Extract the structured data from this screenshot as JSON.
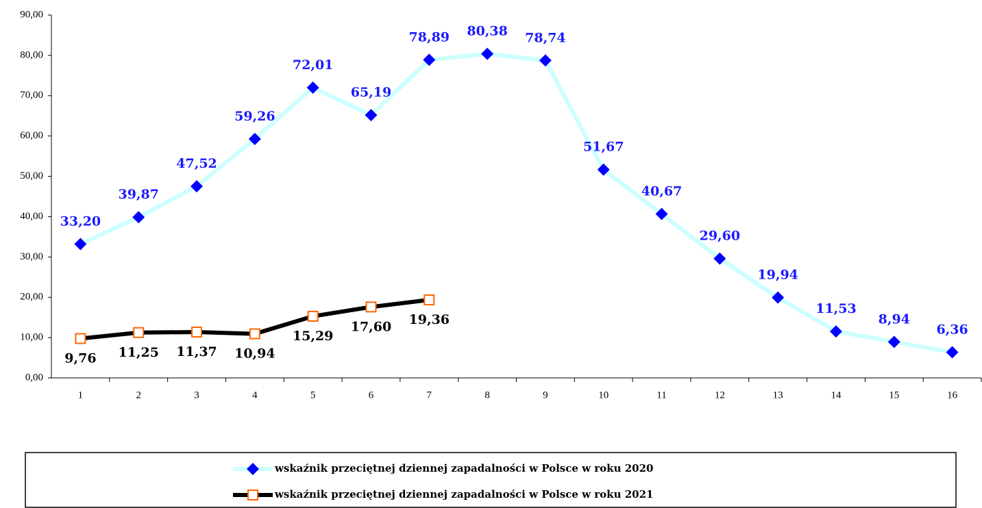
{
  "chart_data": {
    "type": "line",
    "categories": [
      1,
      2,
      3,
      4,
      5,
      6,
      7,
      8,
      9,
      10,
      11,
      12,
      13,
      14,
      15,
      16
    ],
    "ylim": [
      0,
      90
    ],
    "yticks": [
      {
        "value": 0,
        "label": "0,00"
      },
      {
        "value": 10,
        "label": "10,00"
      },
      {
        "value": 20,
        "label": "20,00"
      },
      {
        "value": 30,
        "label": "30,00"
      },
      {
        "value": 40,
        "label": "40,00"
      },
      {
        "value": 50,
        "label": "50,00"
      },
      {
        "value": 60,
        "label": "60,00"
      },
      {
        "value": 70,
        "label": "70,00"
      },
      {
        "value": 80,
        "label": "80,00"
      },
      {
        "value": 90,
        "label": "90,00"
      }
    ],
    "series": [
      {
        "name": "wskaźnik przeciętnej dziennej zapadalności w Polsce w roku 2020",
        "color": "#ccffff",
        "marker": "diamond",
        "marker_color": "#0000ff",
        "label_color": "#1a1aff",
        "label_position": "above",
        "values": [
          33.2,
          39.87,
          47.52,
          59.26,
          72.01,
          65.19,
          78.89,
          80.38,
          78.74,
          51.67,
          40.67,
          29.6,
          19.94,
          11.53,
          8.94,
          6.36
        ],
        "value_labels": [
          "33,20",
          "39,87",
          "47,52",
          "59,26",
          "72,01",
          "65,19",
          "78,89",
          "80,38",
          "78,74",
          "51,67",
          "40,67",
          "29,60",
          "19,94",
          "11,53",
          "8,94",
          "6,36"
        ]
      },
      {
        "name": "wskaźnik przeciętnej dziennej zapadalności w Polsce w roku 2021",
        "color": "#000000",
        "marker": "square",
        "marker_color": "#ff6600",
        "label_color": "#000000",
        "label_position": "below",
        "values": [
          9.76,
          11.25,
          11.37,
          10.94,
          15.29,
          17.6,
          19.36,
          null,
          null,
          null,
          null,
          null,
          null,
          null,
          null,
          null
        ],
        "value_labels": [
          "9,76",
          "11,25",
          "11,37",
          "10,94",
          "15,29",
          "17,60",
          "19,36",
          null,
          null,
          null,
          null,
          null,
          null,
          null,
          null,
          null
        ]
      }
    ]
  }
}
